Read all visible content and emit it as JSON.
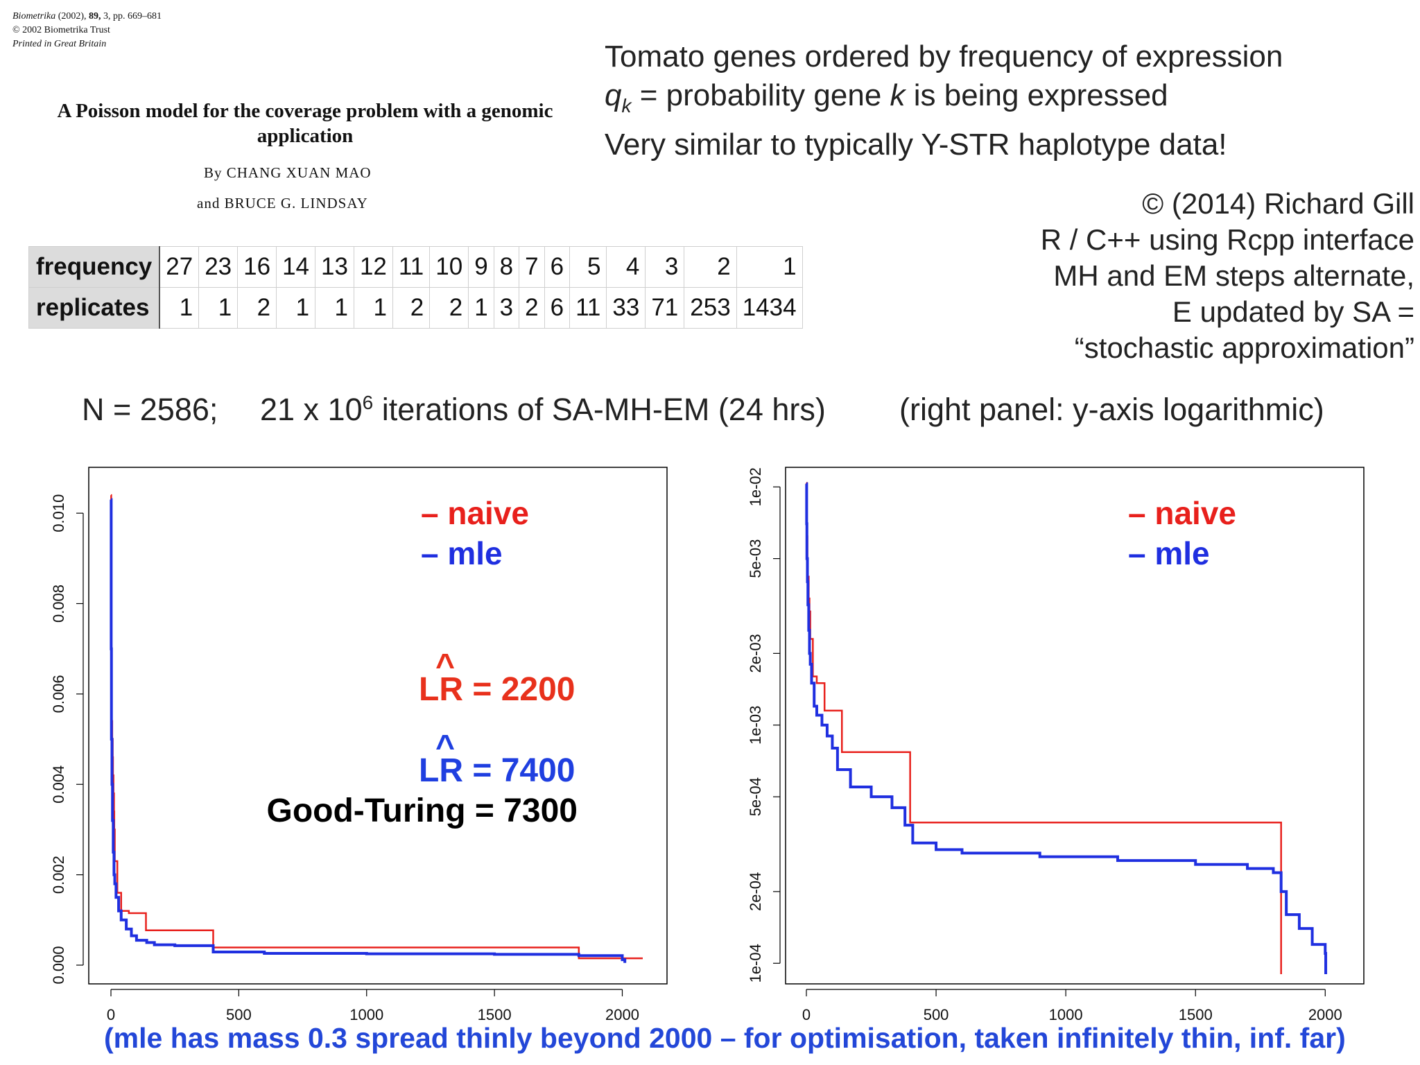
{
  "paper": {
    "journal": "Biometrika",
    "journal_year": "(2002),",
    "volume": "89,",
    "issue_pages": "3, pp. 669–681",
    "copyright": "© 2002 Biometrika Trust",
    "printed": "Printed in Great Britain",
    "title": "A Poisson model for the coverage problem with a genomic application",
    "author_line1": "By CHANG XUAN MAO",
    "author_line2": "and BRUCE G. LINDSAY"
  },
  "notes": {
    "line1": "Tomato genes ordered by frequency of expression",
    "line2_var": "q",
    "line2_sub": "k",
    "line2_mid": " = probability gene ",
    "line2_k": "k",
    "line2_end": " is being expressed",
    "line3": "Very similar to typically Y-STR haplotype data!"
  },
  "credits": {
    "line1": "© (2014) Richard Gill",
    "line2": "R / C++ using Rcpp interface",
    "line3": "MH and EM steps alternate,",
    "line4": "E updated by SA =",
    "line5": "“stochastic approximation”"
  },
  "table": {
    "row1_label": "frequency",
    "row2_label": "replicates",
    "frequency": [
      "27",
      "23",
      "16",
      "14",
      "13",
      "12",
      "11",
      "10",
      "9",
      "8",
      "7",
      "6",
      "5",
      "4",
      "3",
      "2",
      "1"
    ],
    "replicates": [
      "1",
      "1",
      "2",
      "1",
      "1",
      "1",
      "2",
      "2",
      "1",
      "3",
      "2",
      "6",
      "11",
      "33",
      "71",
      "253",
      "1434"
    ]
  },
  "run": {
    "n_text": "N = 2586;",
    "iter_pre": "21 x 10",
    "iter_exp": "6",
    "iter_post": " iterations of SA-MH-EM (24 hrs)",
    "panel_note": "(right panel: y-axis logarithmic)"
  },
  "legend": {
    "naive": "– naive",
    "mle": "– mle"
  },
  "annotations": {
    "lr_label": "LR",
    "lr_hat": "^",
    "lr_naive": " = 2200",
    "lr_mle": " = 7400",
    "good_turing": "Good-Turing = 7300"
  },
  "footnote": "(mle has mass 0.3 spread thinly beyond 2000 – for optimisation, taken infinitely thin, inf. far)",
  "colors": {
    "naive": "#e8201c",
    "mle": "#1f2fe0",
    "lr_naive": "#e8311c",
    "lr_mle": "#1f3fe0",
    "footnote": "#2347d8"
  },
  "chart_data": [
    {
      "type": "line",
      "scale": "linear",
      "title": "",
      "xlabel": "",
      "ylabel": "",
      "xlim": [
        0,
        2080
      ],
      "ylim": [
        -0.0002,
        0.0108
      ],
      "xticks": [
        0,
        500,
        1000,
        1500,
        2000
      ],
      "xtick_labels": [
        "0",
        "500",
        "1000",
        "1500",
        "2000"
      ],
      "yticks": [
        0.0,
        0.002,
        0.004,
        0.006,
        0.008,
        0.01
      ],
      "ytick_labels": [
        "0.000",
        "0.002",
        "0.004",
        "0.006",
        "0.008",
        "0.010"
      ],
      "series": [
        {
          "name": "naive",
          "x": [
            0,
            1,
            2,
            3,
            5,
            7,
            8,
            10,
            12,
            13,
            15,
            25,
            40,
            70,
            137,
            400,
            1830,
            2080
          ],
          "y": [
            0.0104,
            0.0089,
            0.0062,
            0.0054,
            0.005,
            0.0046,
            0.0042,
            0.0038,
            0.0034,
            0.003,
            0.0023,
            0.0016,
            0.0012,
            0.00115,
            0.00077,
            0.00039,
            0.00015,
            0.00015
          ]
        },
        {
          "name": "mle",
          "x": [
            0,
            1,
            2,
            4,
            6,
            9,
            12,
            15,
            20,
            30,
            40,
            60,
            80,
            100,
            140,
            170,
            250,
            400,
            600,
            1000,
            1500,
            1830,
            2000,
            2010
          ],
          "y": [
            0.0103,
            0.007,
            0.005,
            0.004,
            0.0032,
            0.0025,
            0.002,
            0.0018,
            0.0015,
            0.0012,
            0.001,
            0.0008,
            0.00065,
            0.00055,
            0.0005,
            0.00045,
            0.00043,
            0.00029,
            0.00026,
            0.00025,
            0.00024,
            0.00021,
            0.00012,
            5e-05
          ]
        }
      ]
    },
    {
      "type": "line",
      "scale": "log-y",
      "title": "",
      "xlabel": "",
      "ylabel": "",
      "xlim": [
        0,
        2050
      ],
      "ylim": [
        9e-05,
        0.011
      ],
      "xticks": [
        0,
        500,
        1000,
        1500,
        2000
      ],
      "xtick_labels": [
        "0",
        "500",
        "1000",
        "1500",
        "2000"
      ],
      "yticks": [
        0.0001,
        0.0002,
        0.0005,
        0.001,
        0.002,
        0.005,
        0.01
      ],
      "ytick_labels": [
        "1e-04",
        "2e-04",
        "5e-04",
        "1e-03",
        "2e-03",
        "5e-03",
        "1e-02"
      ],
      "series": [
        {
          "name": "naive",
          "x": [
            0,
            1,
            2,
            4,
            6,
            9,
            12,
            15,
            25,
            40,
            70,
            137,
            400,
            1830,
            1830
          ],
          "y": [
            0.0104,
            0.0089,
            0.0062,
            0.005,
            0.0042,
            0.0034,
            0.003,
            0.0023,
            0.0016,
            0.0015,
            0.00115,
            0.00077,
            0.00039,
            0.00039,
            9e-05
          ]
        },
        {
          "name": "mle",
          "x": [
            0,
            1,
            2,
            4,
            6,
            9,
            12,
            15,
            20,
            30,
            40,
            60,
            80,
            100,
            120,
            170,
            250,
            330,
            380,
            410,
            500,
            600,
            900,
            1200,
            1500,
            1700,
            1800,
            1830,
            1850,
            1900,
            1950,
            2000,
            2002
          ],
          "y": [
            0.0103,
            0.007,
            0.005,
            0.004,
            0.0032,
            0.0025,
            0.002,
            0.0018,
            0.0015,
            0.0012,
            0.0011,
            0.001,
            0.0009,
            0.0008,
            0.00065,
            0.00055,
            0.0005,
            0.00045,
            0.00038,
            0.00032,
            0.0003,
            0.00029,
            0.00028,
            0.00027,
            0.00026,
            0.00025,
            0.00024,
            0.0002,
            0.00016,
            0.00014,
            0.00012,
            0.00011,
            9e-05
          ]
        }
      ]
    }
  ]
}
